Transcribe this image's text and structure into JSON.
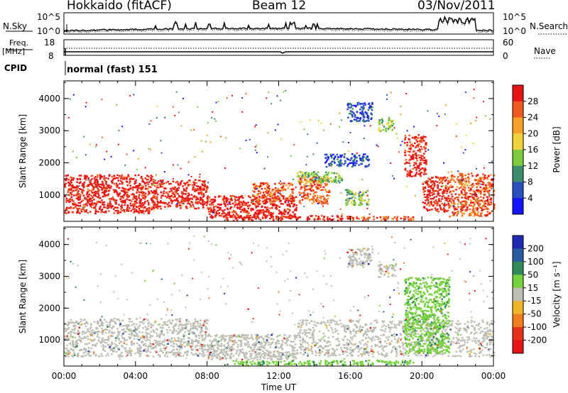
{
  "header": {
    "station": "Hokkaido (fitACF)",
    "beam": "Beam 12",
    "date": "03/Nov/2011"
  },
  "side_labels": {
    "nsky": "N.Sky",
    "nsearch": "N.Search",
    "freq_line1": "Freq.",
    "freq_line2": "[MHz]",
    "nave": "Nave",
    "cpid": "CPID"
  },
  "noise_axis": {
    "left_ticks": [
      "10^5",
      "10^0"
    ],
    "right_ticks": [
      "10^5",
      "10^0"
    ]
  },
  "freq_axis": {
    "left_ticks": [
      "18",
      "8"
    ],
    "right_ticks": [
      "60",
      "0"
    ]
  },
  "cpid_text": "normal (fast) 151",
  "chart_data": [
    {
      "type": "heatmap",
      "title": "",
      "parameter": "Power",
      "colorbar_label": "Power [dB]",
      "colorbar_ticks": [
        "4",
        "8",
        "12",
        "16",
        "20",
        "24",
        "28"
      ],
      "colorbar_colors": [
        "#1414ff",
        "#2a4fbf",
        "#3c8c6e",
        "#7ccb3c",
        "#f0d23c",
        "#f7a028",
        "#f05a1e",
        "#e61414"
      ],
      "ylabel": "Slant Range [km]",
      "yticks": [
        1000,
        2000,
        3000,
        4000
      ],
      "ylim": [
        180,
        4550
      ],
      "xlim_hours": [
        0,
        24
      ],
      "regions": [
        {
          "t0": 0.0,
          "t1": 5.0,
          "r0": 450,
          "r1": 1650,
          "level": 7
        },
        {
          "t0": 5.0,
          "t1": 8.0,
          "r0": 600,
          "r1": 1500,
          "level": 7
        },
        {
          "t0": 8.0,
          "t1": 13.0,
          "r0": 300,
          "r1": 1000,
          "level": 7
        },
        {
          "t0": 10.5,
          "t1": 12.8,
          "r0": 800,
          "r1": 1400,
          "level": 6
        },
        {
          "t0": 13.1,
          "t1": 14.8,
          "r0": 750,
          "r1": 1600,
          "level": 6
        },
        {
          "t0": 13.0,
          "t1": 15.5,
          "r0": 1400,
          "r1": 1750,
          "level": 3
        },
        {
          "t0": 15.7,
          "t1": 17.0,
          "r0": 700,
          "r1": 1200,
          "level": 3
        },
        {
          "t0": 15.8,
          "t1": 17.2,
          "r0": 3300,
          "r1": 3900,
          "level": 1
        },
        {
          "t0": 17.5,
          "t1": 18.4,
          "r0": 3000,
          "r1": 3400,
          "level": 3
        },
        {
          "t0": 19.0,
          "t1": 20.2,
          "r0": 1600,
          "r1": 2900,
          "level": 7
        },
        {
          "t0": 20.0,
          "t1": 21.5,
          "r0": 500,
          "r1": 1600,
          "level": 7
        },
        {
          "t0": 21.5,
          "t1": 24.0,
          "r0": 350,
          "r1": 1700,
          "level": 6
        },
        {
          "t0": 9.0,
          "t1": 16.0,
          "r0": 230,
          "r1": 380,
          "level": 7
        },
        {
          "t0": 16.0,
          "t1": 19.5,
          "r0": 230,
          "r1": 360,
          "level": 6
        },
        {
          "t0": 14.5,
          "t1": 17.0,
          "r0": 1900,
          "r1": 2300,
          "level": 1
        }
      ]
    },
    {
      "type": "heatmap",
      "title": "",
      "parameter": "Velocity",
      "colorbar_label": "Velocity [m s⁻¹]",
      "colorbar_ticks": [
        "200",
        "100",
        "50",
        "15",
        "-15",
        "-50",
        "-100",
        "-200"
      ],
      "colorbar_colors": [
        "#1e2ab4",
        "#2c5aa0",
        "#2f8a5a",
        "#76d23a",
        "#bebeb4",
        "#f0b428",
        "#f07d1e",
        "#e63219",
        "#e61414"
      ],
      "ylabel": "Slant Range [km]",
      "yticks": [
        1000,
        2000,
        3000,
        4000
      ],
      "ylim": [
        180,
        4550
      ],
      "xlim_hours": [
        0,
        24
      ],
      "xlabel": "Time UT",
      "xticks": [
        "00:00",
        "04:00",
        "08:00",
        "12:00",
        "16:00",
        "20:00",
        "00:00"
      ],
      "regions": [
        {
          "t0": 0.0,
          "t1": 8.0,
          "r0": 500,
          "r1": 1700,
          "class": "ground"
        },
        {
          "t0": 8.0,
          "t1": 13.0,
          "r0": 400,
          "r1": 1200,
          "class": "ground"
        },
        {
          "t0": 13.0,
          "t1": 24.0,
          "r0": 500,
          "r1": 1650,
          "class": "ground"
        },
        {
          "t0": 9.0,
          "t1": 19.5,
          "r0": 230,
          "r1": 380,
          "class": "positive"
        },
        {
          "t0": 19.0,
          "t1": 21.5,
          "r0": 600,
          "r1": 3000,
          "class": "positive"
        },
        {
          "t0": 17.5,
          "t1": 18.5,
          "r0": 3000,
          "r1": 3400,
          "class": "ground"
        },
        {
          "t0": 15.8,
          "t1": 17.2,
          "r0": 3300,
          "r1": 3900,
          "class": "ground"
        }
      ]
    }
  ]
}
